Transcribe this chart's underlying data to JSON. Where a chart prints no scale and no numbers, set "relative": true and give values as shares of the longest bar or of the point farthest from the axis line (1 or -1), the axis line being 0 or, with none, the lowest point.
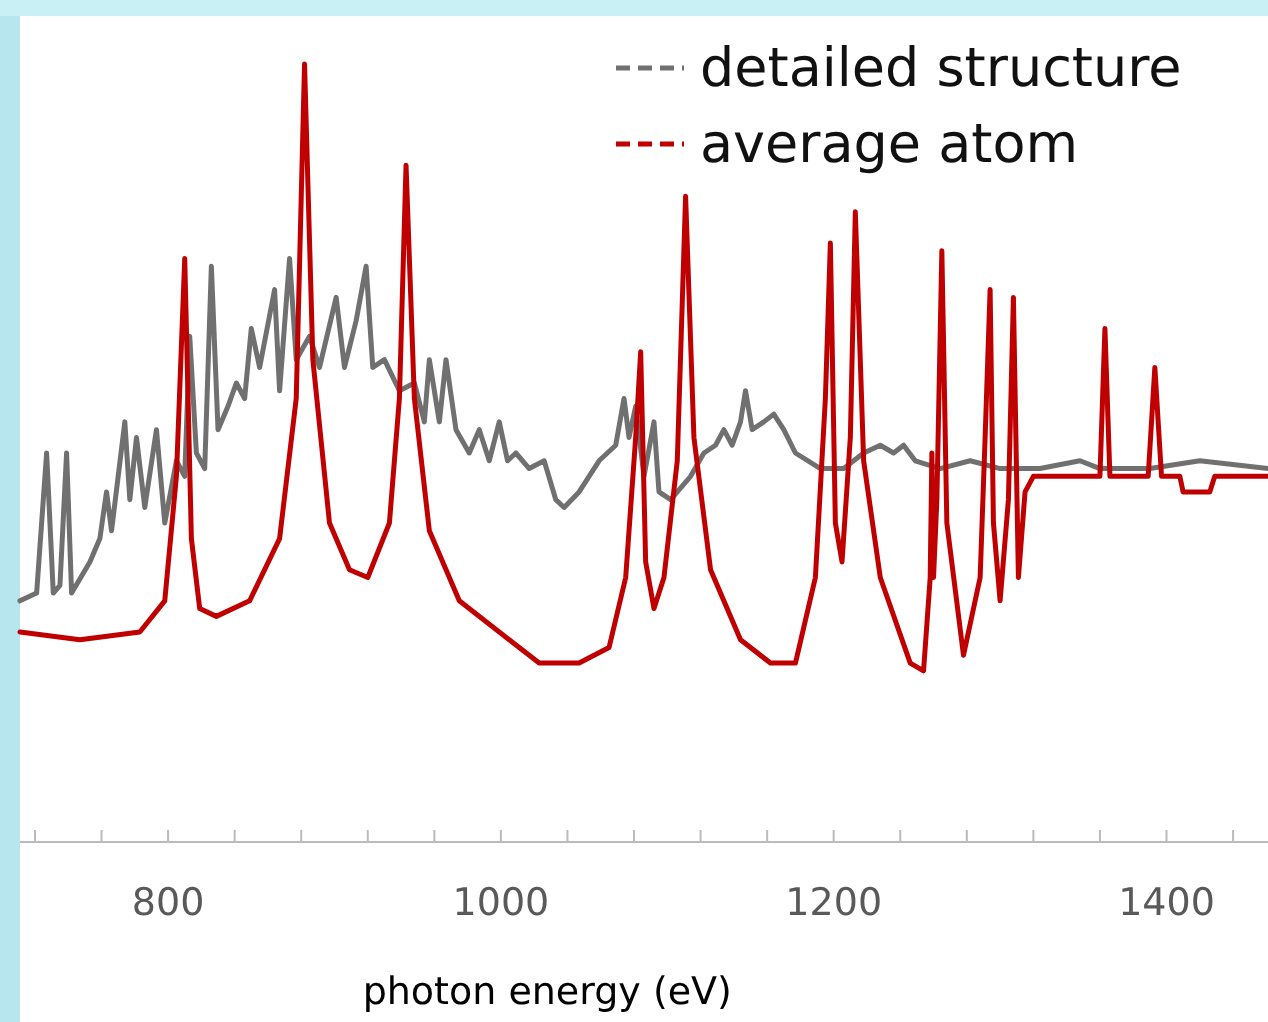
{
  "chart_data": {
    "type": "line",
    "relative": true,
    "xlabel": "photon energy (eV)",
    "xlim": [
      711,
      1461
    ],
    "xticks": [
      {
        "value": 720,
        "label": null
      },
      {
        "value": 760,
        "label": null
      },
      800,
      {
        "value": 840,
        "label": null
      },
      {
        "value": 880,
        "label": null
      },
      {
        "value": 920,
        "label": null
      },
      {
        "value": 960,
        "label": null
      },
      1000,
      {
        "value": 1040,
        "label": null
      },
      {
        "value": 1080,
        "label": null
      },
      {
        "value": 1120,
        "label": null
      },
      {
        "value": 1160,
        "label": null
      },
      1200,
      {
        "value": 1240,
        "label": null
      },
      {
        "value": 1280,
        "label": null
      },
      {
        "value": 1320,
        "label": null
      },
      {
        "value": 1360,
        "label": null
      },
      1400,
      {
        "value": 1440,
        "label": null
      }
    ],
    "tick_labels": "x",
    "legend": "top right",
    "line_style": "solid",
    "series": [
      {
        "name": "detailed structure",
        "color": "#707070",
        "x": [
          711,
          721,
          727,
          731,
          735,
          739,
          742,
          753,
          759,
          763,
          766,
          774,
          777,
          781,
          786,
          793,
          798,
          805,
          810,
          813,
          817,
          822,
          826,
          830,
          836,
          841,
          846,
          850,
          855,
          864,
          867,
          873,
          877,
          885,
          891,
          901,
          906,
          913,
          919,
          923,
          930,
          939,
          948,
          954,
          957,
          963,
          967,
          973,
          981,
          987,
          993,
          999,
          1004,
          1009,
          1017,
          1026,
          1033,
          1038,
          1047,
          1059,
          1069,
          1074,
          1077,
          1081,
          1086,
          1092,
          1095,
          1102,
          1114,
          1122,
          1129,
          1134,
          1139,
          1144,
          1147,
          1151,
          1158,
          1164,
          1170,
          1177,
          1192,
          1206,
          1218,
          1228,
          1236,
          1242,
          1249,
          1264,
          1282,
          1300,
          1324,
          1348,
          1360,
          1390,
          1420,
          1461
        ],
        "values": [
          0.31,
          0.32,
          0.5,
          0.32,
          0.33,
          0.5,
          0.32,
          0.36,
          0.39,
          0.45,
          0.4,
          0.54,
          0.44,
          0.52,
          0.43,
          0.53,
          0.41,
          0.49,
          0.47,
          0.65,
          0.5,
          0.48,
          0.74,
          0.53,
          0.56,
          0.59,
          0.57,
          0.66,
          0.61,
          0.71,
          0.58,
          0.75,
          0.62,
          0.65,
          0.61,
          0.7,
          0.61,
          0.67,
          0.74,
          0.61,
          0.62,
          0.58,
          0.59,
          0.54,
          0.62,
          0.54,
          0.62,
          0.53,
          0.5,
          0.53,
          0.49,
          0.54,
          0.49,
          0.5,
          0.48,
          0.49,
          0.44,
          0.43,
          0.45,
          0.49,
          0.51,
          0.57,
          0.52,
          0.56,
          0.47,
          0.54,
          0.45,
          0.44,
          0.47,
          0.5,
          0.51,
          0.53,
          0.51,
          0.54,
          0.58,
          0.53,
          0.54,
          0.55,
          0.53,
          0.5,
          0.48,
          0.48,
          0.5,
          0.51,
          0.5,
          0.51,
          0.49,
          0.48,
          0.49,
          0.48,
          0.48,
          0.49,
          0.48,
          0.48,
          0.49,
          0.48
        ]
      },
      {
        "name": "average atom",
        "color": "#c00000",
        "x": [
          711,
          747,
          783,
          798,
          805,
          810,
          814,
          819,
          829,
          849,
          867,
          877,
          882,
          887,
          897,
          909,
          920,
          933,
          939,
          943,
          948,
          957,
          975,
          1005,
          1023,
          1047,
          1065,
          1075,
          1081,
          1084,
          1087,
          1092,
          1098,
          1106,
          1111,
          1116,
          1126,
          1144,
          1162,
          1177,
          1189,
          1195,
          1198,
          1201,
          1205,
          1210,
          1213,
          1218,
          1228,
          1246,
          1254,
          1258,
          1259,
          1260,
          1262,
          1265,
          1268,
          1278,
          1288,
          1291,
          1294,
          1296,
          1300,
          1305,
          1308,
          1311,
          1315,
          1320,
          1360,
          1363,
          1366,
          1389,
          1393,
          1397,
          1408,
          1410,
          1426,
          1429,
          1461
        ],
        "values": [
          0.27,
          0.26,
          0.27,
          0.31,
          0.47,
          0.75,
          0.39,
          0.3,
          0.29,
          0.31,
          0.39,
          0.57,
          1.0,
          0.62,
          0.41,
          0.35,
          0.34,
          0.41,
          0.57,
          0.87,
          0.57,
          0.4,
          0.31,
          0.26,
          0.23,
          0.23,
          0.25,
          0.34,
          0.52,
          0.63,
          0.36,
          0.3,
          0.34,
          0.49,
          0.83,
          0.52,
          0.35,
          0.26,
          0.23,
          0.23,
          0.34,
          0.57,
          0.77,
          0.41,
          0.36,
          0.52,
          0.81,
          0.49,
          0.34,
          0.23,
          0.22,
          0.34,
          0.5,
          0.34,
          0.44,
          0.76,
          0.41,
          0.24,
          0.34,
          0.52,
          0.71,
          0.41,
          0.31,
          0.44,
          0.7,
          0.34,
          0.45,
          0.47,
          0.47,
          0.66,
          0.47,
          0.47,
          0.61,
          0.47,
          0.47,
          0.45,
          0.45,
          0.47,
          0.47
        ]
      }
    ]
  }
}
